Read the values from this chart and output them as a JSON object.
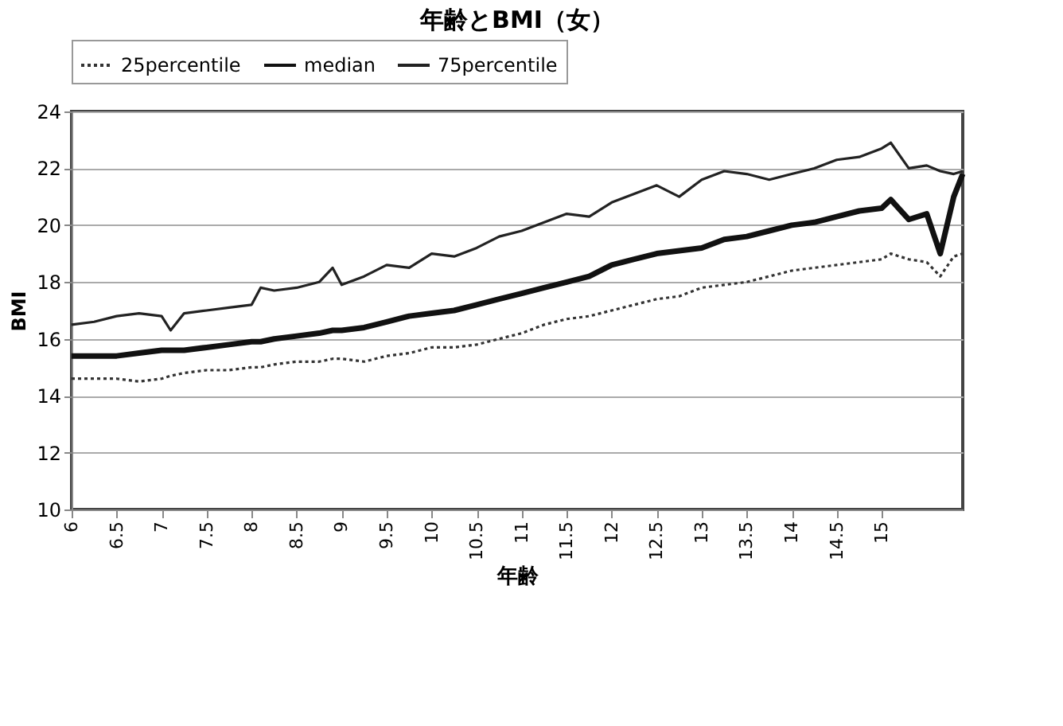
{
  "chart_data": {
    "type": "line",
    "title": "年齢とBMI（女）",
    "xlabel": "年齢",
    "ylabel": "BMI",
    "x": [
      6,
      6.25,
      6.5,
      6.75,
      7,
      7.1,
      7.25,
      7.5,
      7.75,
      8,
      8.1,
      8.25,
      8.5,
      8.75,
      8.9,
      9,
      9.25,
      9.5,
      9.75,
      10,
      10.25,
      10.5,
      10.75,
      11,
      11.25,
      11.5,
      11.75,
      12,
      12.25,
      12.5,
      12.75,
      13,
      13.25,
      13.5,
      13.75,
      14,
      14.25,
      14.5,
      14.75,
      15,
      15.1,
      15.3,
      15.5,
      15.65,
      15.8,
      15.9
    ],
    "series": [
      {
        "name": "25percentile",
        "color": "#333333",
        "line_style": "dotted",
        "values": [
          14.6,
          14.6,
          14.6,
          14.5,
          14.6,
          14.7,
          14.8,
          14.9,
          14.9,
          15.0,
          15.0,
          15.1,
          15.2,
          15.2,
          15.3,
          15.3,
          15.2,
          15.4,
          15.5,
          15.7,
          15.7,
          15.8,
          16.0,
          16.2,
          16.5,
          16.7,
          16.8,
          17.0,
          17.2,
          17.4,
          17.5,
          17.8,
          17.9,
          18.0,
          18.2,
          18.4,
          18.5,
          18.6,
          18.7,
          18.8,
          19.0,
          18.8,
          18.7,
          18.2,
          18.9,
          19.0
        ]
      },
      {
        "name": "median",
        "color": "#111111",
        "line_style": "solid",
        "values": [
          15.4,
          15.4,
          15.4,
          15.5,
          15.6,
          15.6,
          15.6,
          15.7,
          15.8,
          15.9,
          15.9,
          16.0,
          16.1,
          16.2,
          16.3,
          16.3,
          16.4,
          16.6,
          16.8,
          16.9,
          17.0,
          17.2,
          17.4,
          17.6,
          17.8,
          18.0,
          18.2,
          18.6,
          18.8,
          19.0,
          19.1,
          19.2,
          19.5,
          19.6,
          19.8,
          20.0,
          20.1,
          20.3,
          20.5,
          20.6,
          20.9,
          20.2,
          20.4,
          19.0,
          21.0,
          21.8
        ]
      },
      {
        "name": "75percentile",
        "color": "#222222",
        "line_style": "solid",
        "values": [
          16.5,
          16.6,
          16.8,
          16.9,
          16.8,
          16.3,
          16.9,
          17.0,
          17.1,
          17.2,
          17.8,
          17.7,
          17.8,
          18.0,
          18.5,
          17.9,
          18.2,
          18.6,
          18.5,
          19.0,
          18.9,
          19.2,
          19.6,
          19.8,
          20.1,
          20.4,
          20.3,
          20.8,
          21.1,
          21.4,
          21.0,
          21.6,
          21.9,
          21.8,
          21.6,
          21.8,
          22.0,
          22.3,
          22.4,
          22.7,
          22.9,
          22.0,
          22.1,
          21.9,
          21.8,
          21.9
        ]
      }
    ],
    "xlim": [
      6,
      15.9
    ],
    "xticks": [
      6,
      6.5,
      7,
      7.5,
      8,
      8.5,
      9,
      9.5,
      10,
      10.5,
      11,
      11.5,
      12,
      12.5,
      13,
      13.5,
      14,
      14.5,
      15
    ],
    "ylim": [
      10,
      24
    ],
    "yticks": [
      10,
      12,
      14,
      16,
      18,
      20,
      22,
      24
    ],
    "grid": "y",
    "legend": "top"
  }
}
